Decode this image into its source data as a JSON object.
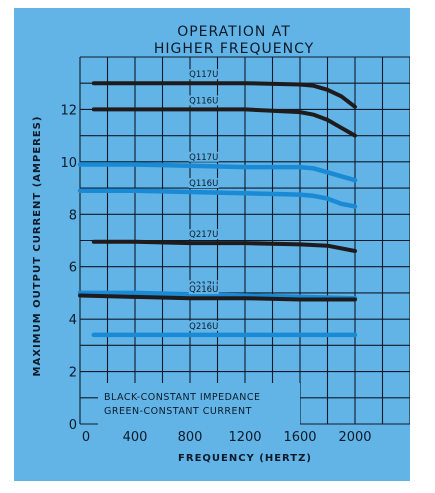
{
  "chart_data": {
    "type": "line",
    "title": "OPERATION AT\nHIGHER FREQUENCY",
    "title_lines": [
      "OPERATION AT",
      "HIGHER FREQUENCY"
    ],
    "xlabel": "FREQUENCY  (HERTZ)",
    "ylabel": "MAXIMUM  OUTPUT  CURRENT  (AMPERES)",
    "xlim": [
      0,
      2400
    ],
    "ylim": [
      0,
      14
    ],
    "x_ticks": [
      0,
      400,
      800,
      1200,
      1600,
      2000
    ],
    "y_ticks": [
      0,
      2,
      4,
      6,
      8,
      10,
      12
    ],
    "grid": true,
    "note_lines": [
      "BLACK-CONSTANT  IMPEDANCE",
      "GREEN-CONSTANT  CURRENT"
    ],
    "colors": {
      "black": "#1f1b1c",
      "green": "#1a8ad4",
      "background": "#62b4e6",
      "grid": "#0d1a2a"
    },
    "series": [
      {
        "name": "Q117U",
        "color": "black",
        "x": [
          100,
          400,
          800,
          1200,
          1600,
          1700,
          1800,
          1900,
          2000
        ],
        "y": [
          13.0,
          13.0,
          13.0,
          13.0,
          12.95,
          12.9,
          12.75,
          12.5,
          12.1
        ]
      },
      {
        "name": "Q116U",
        "color": "black",
        "x": [
          100,
          400,
          800,
          1200,
          1600,
          1700,
          1800,
          1900,
          2000
        ],
        "y": [
          12.0,
          12.0,
          12.0,
          12.0,
          11.9,
          11.8,
          11.6,
          11.3,
          11.0
        ]
      },
      {
        "name": "Q117U",
        "color": "green",
        "x": [
          0,
          400,
          800,
          1200,
          1600,
          1700,
          1800,
          1900,
          2000
        ],
        "y": [
          9.9,
          9.9,
          9.85,
          9.8,
          9.8,
          9.75,
          9.6,
          9.45,
          9.3
        ]
      },
      {
        "name": "Q116U",
        "color": "green",
        "x": [
          0,
          400,
          800,
          1200,
          1600,
          1700,
          1800,
          1900,
          2000
        ],
        "y": [
          8.9,
          8.9,
          8.85,
          8.8,
          8.75,
          8.7,
          8.6,
          8.4,
          8.3
        ]
      },
      {
        "name": "Q217U",
        "color": "black",
        "x": [
          100,
          400,
          800,
          1200,
          1600,
          1800,
          2000
        ],
        "y": [
          6.95,
          6.95,
          6.9,
          6.9,
          6.85,
          6.8,
          6.6
        ]
      },
      {
        "name": "Q217U",
        "color": "green",
        "x": [
          0,
          400,
          800,
          1200,
          1600,
          2000
        ],
        "y": [
          5.0,
          5.0,
          4.95,
          4.9,
          4.85,
          4.8
        ]
      },
      {
        "name": "Q216U",
        "color": "black",
        "x": [
          0,
          400,
          800,
          1200,
          1600,
          2000
        ],
        "y": [
          4.9,
          4.85,
          4.8,
          4.8,
          4.75,
          4.75
        ]
      },
      {
        "name": "Q216U",
        "color": "green",
        "x": [
          100,
          400,
          800,
          1200,
          1600,
          2000
        ],
        "y": [
          3.4,
          3.4,
          3.4,
          3.4,
          3.4,
          3.4
        ]
      }
    ]
  }
}
